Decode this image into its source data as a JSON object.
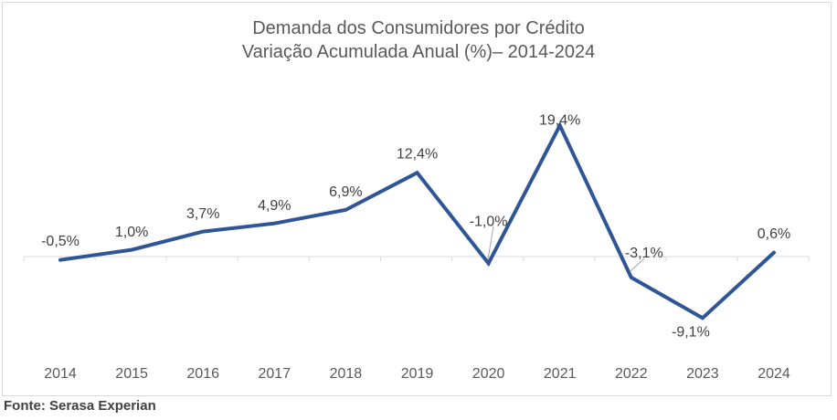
{
  "chart_data": {
    "type": "line",
    "title": "Demanda dos Consumidores por Crédito",
    "subtitle": "Variação Acumulada Anual (%)– 2014-2024",
    "categories": [
      "2014",
      "2015",
      "2016",
      "2017",
      "2018",
      "2019",
      "2020",
      "2021",
      "2022",
      "2023",
      "2024"
    ],
    "series": [
      {
        "values": [
          -0.5,
          1.0,
          3.7,
          4.9,
          6.9,
          12.4,
          -1.0,
          19.4,
          -3.1,
          -9.1,
          0.6
        ],
        "labels": [
          "-0,5%",
          "1,0%",
          "3,7%",
          "4,9%",
          "6,9%",
          "12,4%",
          "-1,0%",
          "19,4%",
          "-3,1%",
          "-9,1%",
          "0,6%"
        ],
        "color": "#2f5597"
      }
    ],
    "ylim": [
      -14,
      21
    ],
    "grid": false,
    "legend": "none"
  },
  "source": "Fonte: Serasa Experian",
  "colors": {
    "axis": "#d9d9d9",
    "leader_line": "#a6a6a6"
  }
}
